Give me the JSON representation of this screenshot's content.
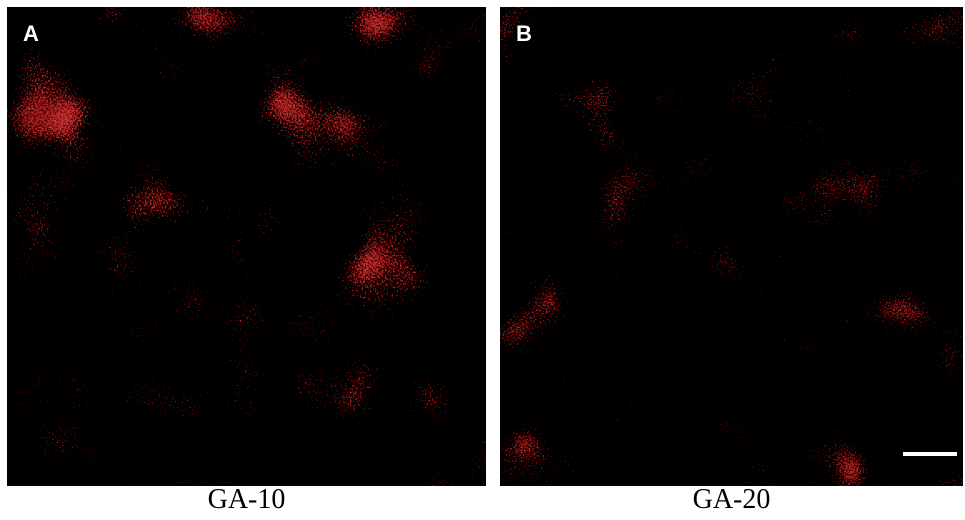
{
  "panels": [
    {
      "label": "A",
      "caption": "GA-10"
    },
    {
      "label": "B",
      "caption": "GA-20"
    }
  ]
}
